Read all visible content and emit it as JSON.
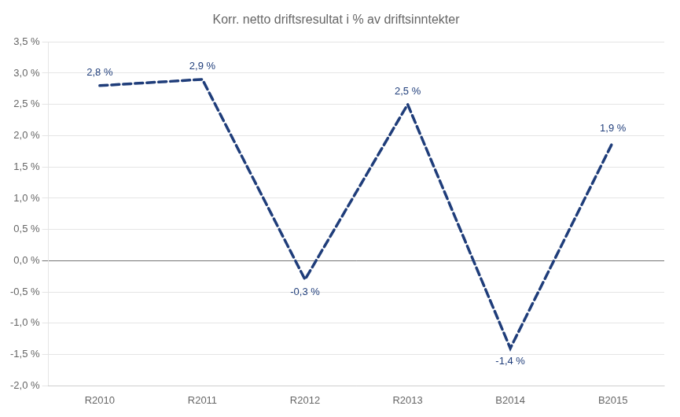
{
  "chart_data": {
    "type": "line",
    "title": "Korr. netto driftsresultat i % av driftsinntekter",
    "categories": [
      "R2010",
      "R2011",
      "R2012",
      "R2013",
      "B2014",
      "B2015"
    ],
    "values": [
      2.8,
      2.9,
      -0.3,
      2.5,
      -1.4,
      1.9
    ],
    "value_labels": [
      "2,8 %",
      "2,9 %",
      "-0,3 %",
      "2,5 %",
      "-1,4 %",
      "1,9 %"
    ],
    "data_labels": true,
    "color": "#1F3D7A",
    "line_style": "dashed",
    "marker": "none",
    "ylim": [
      -2.0,
      3.5
    ],
    "yticks": [
      {
        "value": -2.0,
        "label": "-2,0 %"
      },
      {
        "value": -1.5,
        "label": "-1,5 %"
      },
      {
        "value": -1.0,
        "label": "-1,0 %"
      },
      {
        "value": -0.5,
        "label": "-0,5 %"
      },
      {
        "value": 0.0,
        "label": "0,0 %"
      },
      {
        "value": 0.5,
        "label": "0,5 %"
      },
      {
        "value": 1.0,
        "label": "1,0 %"
      },
      {
        "value": 1.5,
        "label": "1,5 %"
      },
      {
        "value": 2.0,
        "label": "2,0 %"
      },
      {
        "value": 2.5,
        "label": "2,5 %"
      },
      {
        "value": 3.0,
        "label": "3,0 %"
      },
      {
        "value": 3.5,
        "label": "3,5 %"
      }
    ],
    "grid": true
  }
}
